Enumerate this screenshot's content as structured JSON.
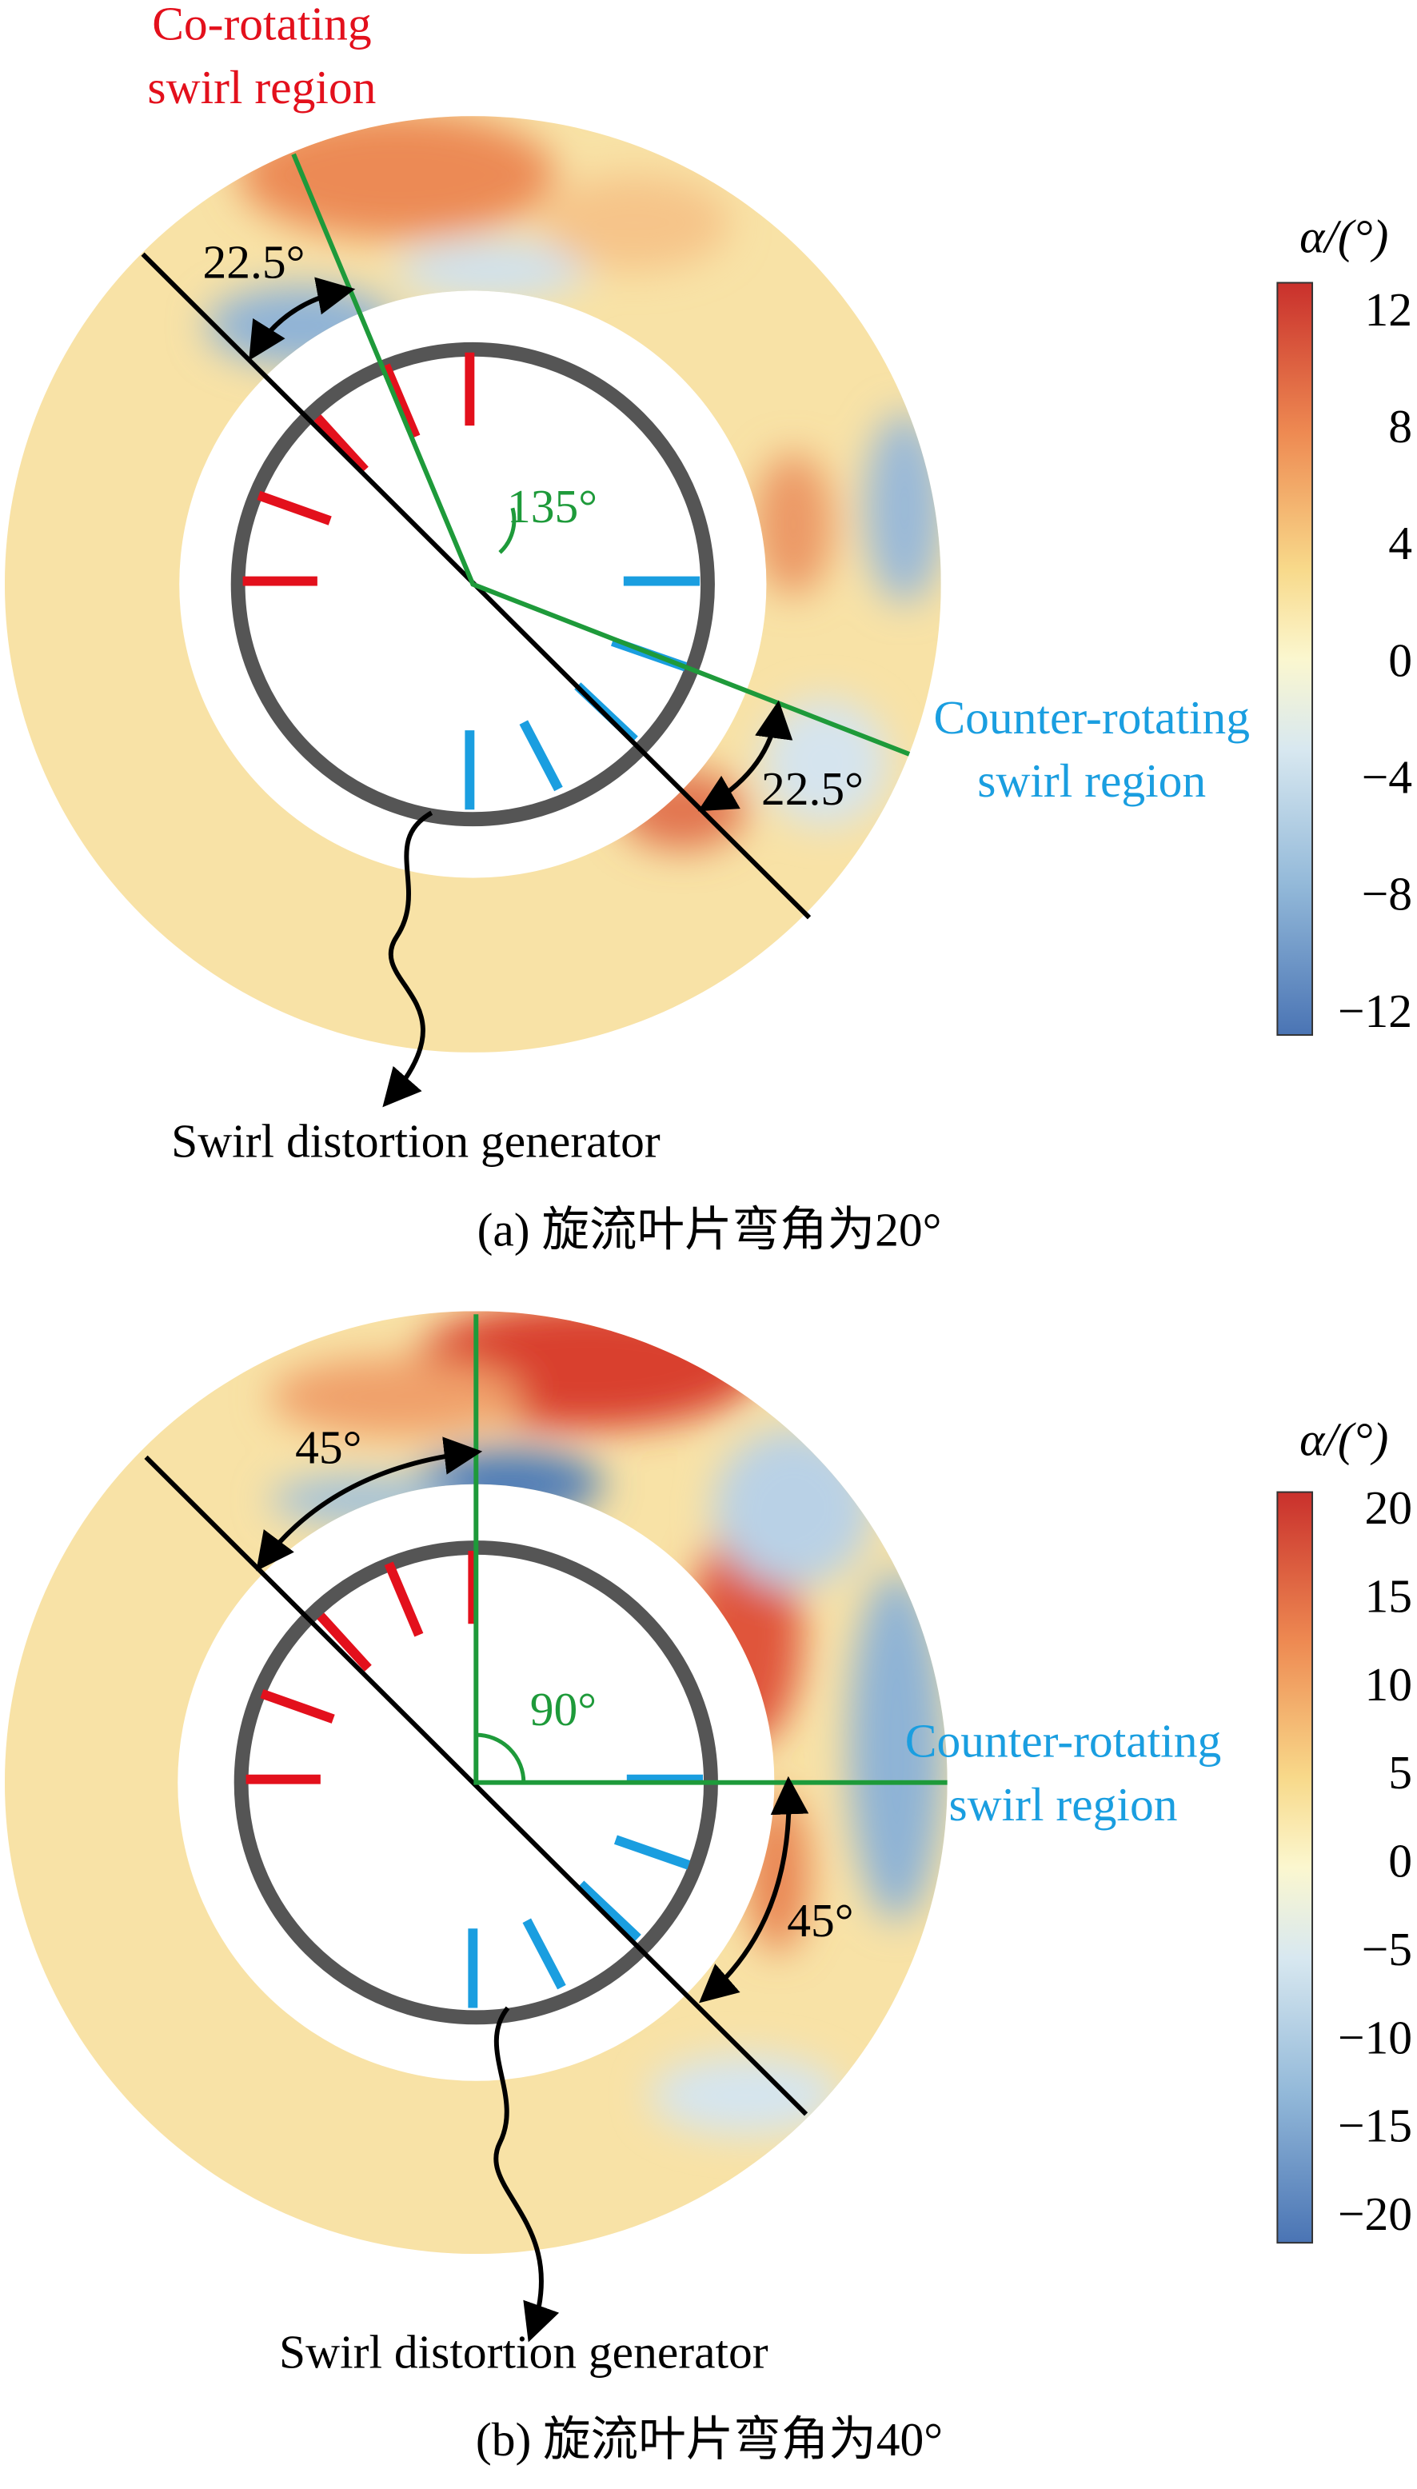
{
  "panels": [
    {
      "co_rotating_label": [
        "Co-rotating",
        "swirl region"
      ],
      "counter_rotating_label": [
        "Counter-rotating",
        "swirl region"
      ],
      "angle_labels": [
        "22.5°",
        "135°",
        "22.5°"
      ],
      "generator_label": "Swirl distortion generator",
      "caption": "(a) 旋流叶片弯角为20°",
      "colorbar": {
        "title": "α/(°)",
        "ticks": [
          "12",
          "8",
          "4",
          "0",
          "−4",
          "−8",
          "−12"
        ]
      }
    },
    {
      "counter_rotating_label": [
        "Counter-rotating",
        "swirl region"
      ],
      "angle_labels": [
        "45°",
        "90°",
        "45°"
      ],
      "generator_label": "Swirl distortion generator",
      "caption": "(b) 旋流叶片弯角为40°",
      "colorbar": {
        "title": "α/(°)",
        "ticks": [
          "20",
          "15",
          "10",
          "5",
          "0",
          "−5",
          "−10",
          "−15",
          "−20"
        ]
      }
    }
  ]
}
